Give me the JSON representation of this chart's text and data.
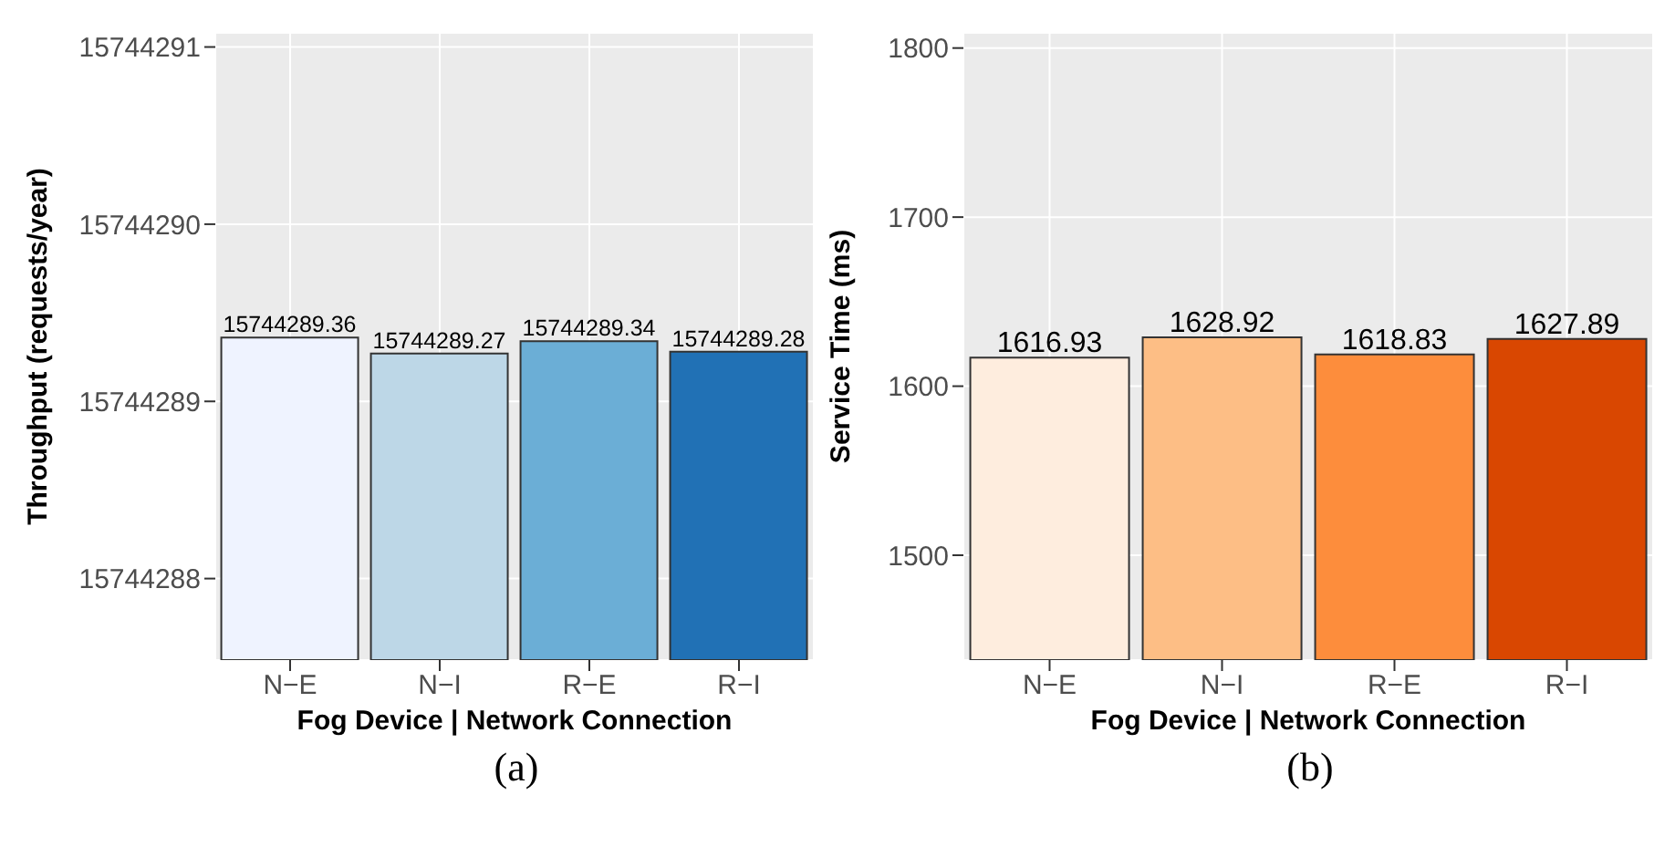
{
  "chart_data": [
    {
      "type": "bar",
      "xlabel": "Fog Device | Network Connection",
      "ylabel": "Throughput (requests/year)",
      "categories": [
        "N−E",
        "N−I",
        "R−E",
        "R−I"
      ],
      "values": [
        15744289.36,
        15744289.27,
        15744289.34,
        15744289.28
      ],
      "colors": [
        "#eff3ff",
        "#bdd7e7",
        "#6baed6",
        "#2171b5"
      ],
      "ylim": [
        15744287.54,
        15744291.08
      ],
      "yticks": [
        15744288,
        15744289,
        15744290,
        15744291
      ],
      "grid": true,
      "data_labels": true,
      "annotations": [
        "(a)"
      ]
    },
    {
      "type": "bar",
      "xlabel": "Fog Device | Network Connection",
      "ylabel": "Service Time (ms)",
      "categories": [
        "N−E",
        "N−I",
        "R−E",
        "R−I"
      ],
      "values": [
        1616.93,
        1628.92,
        1618.83,
        1627.89
      ],
      "colors": [
        "#feedde",
        "#fdbe85",
        "#fd8d3c",
        "#d94701"
      ],
      "ylim": [
        1438,
        1809
      ],
      "yticks": [
        1500,
        1600,
        1700,
        1800
      ],
      "grid": true,
      "data_labels": true,
      "annotations": [
        "(b)"
      ]
    }
  ]
}
